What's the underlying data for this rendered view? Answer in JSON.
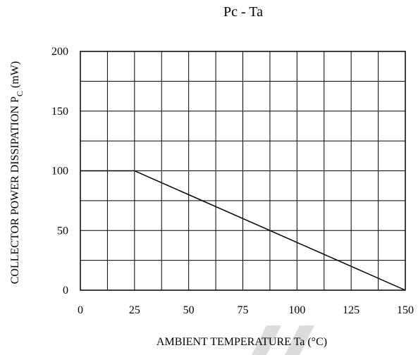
{
  "chart_data": {
    "type": "line",
    "title": "Pc  - Ta",
    "xlabel": "AMBIENT TEMPERATURE Ta  (°C)",
    "ylabel": {
      "main": "COLLECTOR POWER DISSIPATION P",
      "subscript": "C",
      "unit": "  (mW)"
    },
    "xlim": [
      0,
      150
    ],
    "ylim": [
      0,
      200
    ],
    "x_tick_labels": [
      "0",
      "25",
      "50",
      "75",
      "100",
      "125",
      "150"
    ],
    "y_tick_labels": [
      "200",
      "150",
      "100",
      "50",
      "0"
    ],
    "grid": true,
    "grid_x_step": 12.5,
    "grid_y_step": 25,
    "series": [
      {
        "x": [
          0,
          25,
          150
        ],
        "y": [
          100,
          100,
          0
        ]
      }
    ]
  },
  "colors": {
    "line": "#000000",
    "grid": "#000000",
    "watermark": "#dcdcdc"
  }
}
